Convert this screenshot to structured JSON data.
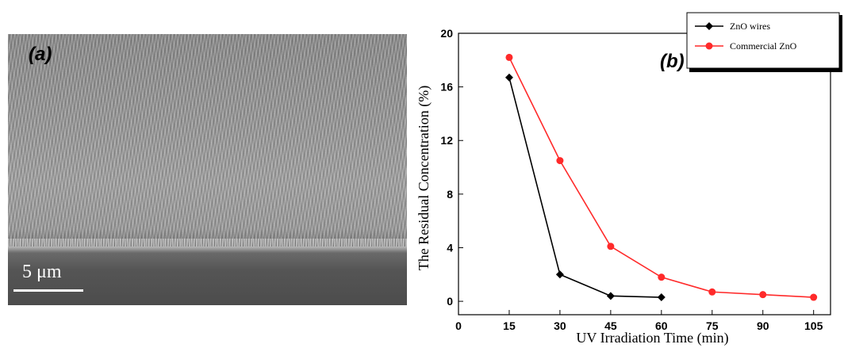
{
  "panel_a": {
    "label": "(a)",
    "scale_text": "5 μm"
  },
  "panel_b": {
    "label": "(b)"
  },
  "chart_data": {
    "type": "line",
    "xlabel": "UV Irradiation Time (min)",
    "ylabel": "The Residual Concentration (%)",
    "xlim": [
      0,
      110
    ],
    "ylim": [
      -1,
      20
    ],
    "xticks": [
      0,
      15,
      30,
      45,
      60,
      75,
      90,
      105
    ],
    "yticks": [
      0,
      4,
      8,
      12,
      16,
      20
    ],
    "legend_position": "top-right",
    "series": [
      {
        "name": "ZnO wires",
        "color": "#000000",
        "marker": "diamond",
        "x": [
          15,
          30,
          45,
          60
        ],
        "y": [
          16.7,
          2.0,
          0.4,
          0.3
        ]
      },
      {
        "name": "Commercial ZnO",
        "color": "#ff2a2a",
        "marker": "circle",
        "x": [
          15,
          30,
          45,
          60,
          75,
          90,
          105
        ],
        "y": [
          18.2,
          10.5,
          4.1,
          1.8,
          0.7,
          0.5,
          0.3
        ]
      }
    ]
  }
}
